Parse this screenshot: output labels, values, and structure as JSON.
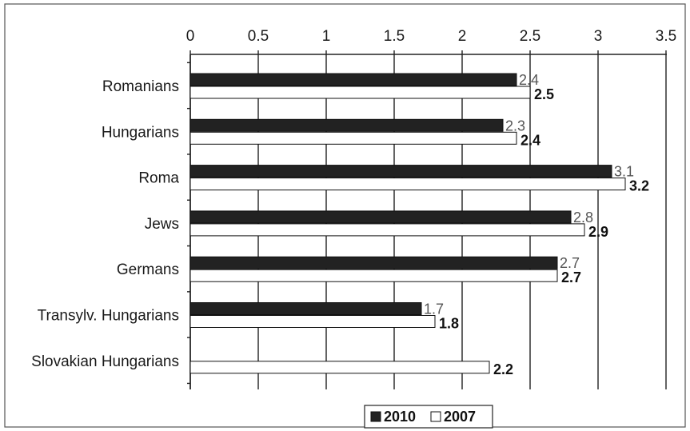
{
  "chart_data": {
    "type": "bar",
    "orientation": "horizontal",
    "categories": [
      "Romanians",
      "Hungarians",
      "Roma",
      "Jews",
      "Germans",
      "Transylv. Hungarians",
      "Slovakian Hungarians"
    ],
    "series": [
      {
        "name": "2010",
        "values": [
          2.4,
          2.3,
          3.1,
          2.8,
          2.7,
          1.7,
          null
        ],
        "labels": [
          "2.4",
          "2.3",
          "3.1",
          "2.8",
          "2.7",
          "1.7",
          ""
        ],
        "color": "#222222"
      },
      {
        "name": "2007",
        "values": [
          2.5,
          2.4,
          3.2,
          2.9,
          2.7,
          1.8,
          2.2
        ],
        "labels": [
          "2.5",
          "2.4",
          "3.2",
          "2.9",
          "2.7",
          "1.8",
          "2.2"
        ],
        "color": "#ffffff"
      }
    ],
    "xlim": [
      0,
      3.5
    ],
    "xticks": [
      0,
      0.5,
      1,
      1.5,
      2,
      2.5,
      3,
      3.5
    ],
    "xtick_labels": [
      "0",
      "0.5",
      "1",
      "1.5",
      "2",
      "2.5",
      "3",
      "3.5"
    ],
    "x_axis_position": "top",
    "grid": "vertical",
    "legend": "bottom",
    "title": "",
    "xlabel": "",
    "ylabel": ""
  }
}
